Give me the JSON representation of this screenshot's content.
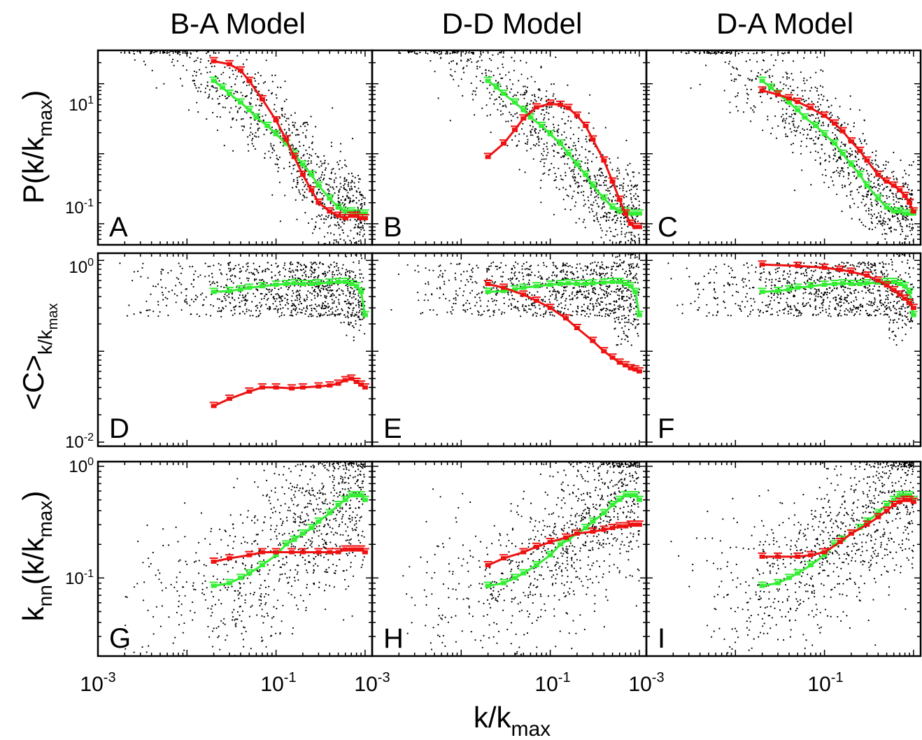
{
  "figure": {
    "column_titles": [
      "B-A Model",
      "D-D Model",
      "D-A Model"
    ],
    "row_labels": {
      "r0": {
        "main": "P(k/k",
        "sub": "max",
        "close": ")"
      },
      "r1": {
        "main": "<C>",
        "sub": "k/k",
        "subsub": "max"
      },
      "r2": {
        "main": "k",
        "sub": "nn",
        "mid": "(k/k",
        "sub2": "max",
        "close": ")"
      }
    },
    "xlabel": {
      "main": "k/k",
      "sub": "max"
    },
    "x_tick_labels": {
      "base": "10",
      "exps": [
        "-3",
        "-1"
      ]
    },
    "y_tick_labels": {
      "r0": [
        {
          "base": "10",
          "exp": "1"
        },
        {
          "base": "10",
          "exp": "-1"
        }
      ],
      "r1": [
        {
          "base": "10",
          "exp": "0"
        },
        {
          "base": "10",
          "exp": "-2"
        }
      ],
      "r2": [
        {
          "base": "10",
          "exp": "0"
        },
        {
          "base": "10",
          "exp": "-1"
        }
      ]
    },
    "colors": {
      "data": "#000000",
      "observed_fit": "#33ee33",
      "model_fit": "#ee1111"
    }
  },
  "chart_data": [
    {
      "panel": "A",
      "type": "scatter",
      "row": 0,
      "col": 0,
      "xlim": [
        0.001,
        1.2
      ],
      "ylim": [
        0.05,
        30
      ],
      "xscale": "log",
      "yscale": "log",
      "series": [
        {
          "color": "green",
          "x": [
            0.02,
            0.025,
            0.03,
            0.04,
            0.05,
            0.06,
            0.08,
            0.1,
            0.13,
            0.16,
            0.2,
            0.25,
            0.3,
            0.4,
            0.5,
            0.6,
            0.7,
            0.8,
            0.9,
            1.0
          ],
          "y": [
            11,
            8.8,
            7.2,
            5.4,
            4.2,
            3.3,
            2.5,
            1.9,
            1.4,
            1.0,
            0.7,
            0.5,
            0.35,
            0.23,
            0.17,
            0.15,
            0.15,
            0.14,
            0.14,
            0.14
          ]
        },
        {
          "color": "red",
          "x": [
            0.02,
            0.03,
            0.04,
            0.05,
            0.07,
            0.1,
            0.13,
            0.16,
            0.2,
            0.25,
            0.3,
            0.4,
            0.5,
            0.6,
            0.7,
            0.8,
            0.9,
            1.0
          ],
          "y": [
            21,
            19,
            15.5,
            11,
            6,
            3,
            1.6,
            0.9,
            0.5,
            0.3,
            0.2,
            0.15,
            0.13,
            0.12,
            0.13,
            0.13,
            0.12,
            0.12
          ]
        }
      ]
    },
    {
      "panel": "B",
      "type": "scatter",
      "row": 0,
      "col": 1,
      "xlim": [
        0.001,
        1.2
      ],
      "ylim": [
        0.05,
        30
      ],
      "xscale": "log",
      "yscale": "log",
      "series": [
        {
          "color": "green",
          "x": [
            0.02,
            0.025,
            0.03,
            0.04,
            0.05,
            0.06,
            0.08,
            0.1,
            0.13,
            0.16,
            0.2,
            0.25,
            0.3,
            0.4,
            0.5,
            0.6,
            0.7,
            0.8,
            0.9,
            1.0
          ],
          "y": [
            11,
            8.8,
            7.2,
            5.4,
            4.2,
            3.3,
            2.5,
            1.9,
            1.4,
            1.0,
            0.7,
            0.5,
            0.35,
            0.23,
            0.17,
            0.15,
            0.15,
            0.14,
            0.14,
            0.14
          ]
        },
        {
          "color": "red",
          "x": [
            0.02,
            0.03,
            0.04,
            0.05,
            0.07,
            0.1,
            0.13,
            0.16,
            0.2,
            0.25,
            0.3,
            0.4,
            0.5,
            0.6,
            0.7,
            0.8,
            0.9,
            1.0
          ],
          "y": [
            0.9,
            1.4,
            2.2,
            3.2,
            4.6,
            5.2,
            5.0,
            4.5,
            3.5,
            2.5,
            1.6,
            0.8,
            0.4,
            0.22,
            0.14,
            0.1,
            0.09,
            0.09
          ]
        }
      ]
    },
    {
      "panel": "C",
      "type": "scatter",
      "row": 0,
      "col": 2,
      "xlim": [
        0.001,
        1.2
      ],
      "ylim": [
        0.05,
        30
      ],
      "xscale": "log",
      "yscale": "log",
      "series": [
        {
          "color": "green",
          "x": [
            0.02,
            0.025,
            0.03,
            0.04,
            0.05,
            0.06,
            0.08,
            0.1,
            0.13,
            0.16,
            0.2,
            0.25,
            0.3,
            0.4,
            0.5,
            0.6,
            0.7,
            0.8,
            0.9,
            1.0
          ],
          "y": [
            11,
            8.8,
            7.2,
            5.4,
            4.2,
            3.3,
            2.5,
            1.9,
            1.4,
            1.0,
            0.7,
            0.5,
            0.35,
            0.23,
            0.17,
            0.15,
            0.15,
            0.14,
            0.14,
            0.14
          ]
        },
        {
          "color": "red",
          "x": [
            0.02,
            0.03,
            0.04,
            0.05,
            0.07,
            0.1,
            0.13,
            0.16,
            0.2,
            0.25,
            0.3,
            0.4,
            0.5,
            0.6,
            0.7,
            0.8,
            0.9,
            1.0
          ],
          "y": [
            8,
            7,
            6.2,
            5.5,
            4.5,
            3.5,
            2.7,
            2.1,
            1.5,
            1.1,
            0.8,
            0.5,
            0.4,
            0.35,
            0.3,
            0.25,
            0.2,
            0.15
          ]
        }
      ]
    },
    {
      "panel": "D",
      "type": "scatter",
      "row": 1,
      "col": 0,
      "xlim": [
        0.001,
        1.2
      ],
      "ylim": [
        0.009,
        1.2
      ],
      "xscale": "log",
      "yscale": "log",
      "series": [
        {
          "color": "green",
          "x": [
            0.02,
            0.03,
            0.04,
            0.05,
            0.07,
            0.1,
            0.13,
            0.16,
            0.2,
            0.25,
            0.3,
            0.4,
            0.5,
            0.6,
            0.7,
            0.8,
            0.9,
            1.0
          ],
          "y": [
            0.45,
            0.46,
            0.48,
            0.5,
            0.52,
            0.54,
            0.55,
            0.56,
            0.55,
            0.55,
            0.56,
            0.57,
            0.58,
            0.58,
            0.55,
            0.52,
            0.45,
            0.25
          ]
        },
        {
          "color": "red",
          "x": [
            0.02,
            0.03,
            0.05,
            0.07,
            0.1,
            0.15,
            0.2,
            0.3,
            0.4,
            0.5,
            0.6,
            0.7,
            0.8,
            0.9,
            1.0
          ],
          "y": [
            0.025,
            0.03,
            0.036,
            0.04,
            0.04,
            0.039,
            0.04,
            0.041,
            0.042,
            0.044,
            0.048,
            0.05,
            0.046,
            0.043,
            0.04
          ]
        }
      ]
    },
    {
      "panel": "E",
      "type": "scatter",
      "row": 1,
      "col": 1,
      "xlim": [
        0.001,
        1.2
      ],
      "ylim": [
        0.009,
        1.2
      ],
      "xscale": "log",
      "yscale": "log",
      "series": [
        {
          "color": "green",
          "x": [
            0.02,
            0.03,
            0.04,
            0.05,
            0.07,
            0.1,
            0.13,
            0.16,
            0.2,
            0.25,
            0.3,
            0.4,
            0.5,
            0.6,
            0.7,
            0.8,
            0.9,
            1.0
          ],
          "y": [
            0.45,
            0.46,
            0.48,
            0.5,
            0.52,
            0.54,
            0.55,
            0.56,
            0.55,
            0.55,
            0.56,
            0.57,
            0.58,
            0.58,
            0.55,
            0.52,
            0.45,
            0.25
          ]
        },
        {
          "color": "red",
          "x": [
            0.02,
            0.03,
            0.05,
            0.07,
            0.1,
            0.15,
            0.2,
            0.3,
            0.4,
            0.5,
            0.6,
            0.7,
            0.8,
            0.9,
            1.0
          ],
          "y": [
            0.55,
            0.5,
            0.42,
            0.36,
            0.3,
            0.23,
            0.18,
            0.13,
            0.1,
            0.085,
            0.075,
            0.07,
            0.065,
            0.063,
            0.06
          ]
        }
      ]
    },
    {
      "panel": "F",
      "type": "scatter",
      "row": 1,
      "col": 2,
      "xlim": [
        0.001,
        1.2
      ],
      "ylim": [
        0.009,
        1.2
      ],
      "xscale": "log",
      "yscale": "log",
      "series": [
        {
          "color": "green",
          "x": [
            0.02,
            0.03,
            0.04,
            0.05,
            0.07,
            0.1,
            0.13,
            0.16,
            0.2,
            0.25,
            0.3,
            0.4,
            0.5,
            0.6,
            0.7,
            0.8,
            0.9,
            1.0
          ],
          "y": [
            0.45,
            0.46,
            0.48,
            0.5,
            0.52,
            0.54,
            0.55,
            0.56,
            0.55,
            0.55,
            0.56,
            0.57,
            0.58,
            0.58,
            0.55,
            0.52,
            0.45,
            0.25
          ]
        },
        {
          "color": "red",
          "x": [
            0.02,
            0.05,
            0.1,
            0.15,
            0.2,
            0.3,
            0.4,
            0.5,
            0.6,
            0.7,
            0.8,
            0.9,
            1.0
          ],
          "y": [
            0.9,
            0.87,
            0.83,
            0.79,
            0.75,
            0.68,
            0.6,
            0.53,
            0.47,
            0.42,
            0.38,
            0.34,
            0.3
          ]
        }
      ]
    },
    {
      "panel": "G",
      "type": "scatter",
      "row": 2,
      "col": 0,
      "xlim": [
        0.001,
        1.2
      ],
      "ylim": [
        0.02,
        1.1
      ],
      "xscale": "log",
      "yscale": "log",
      "series": [
        {
          "color": "green",
          "x": [
            0.02,
            0.03,
            0.04,
            0.05,
            0.07,
            0.1,
            0.13,
            0.16,
            0.2,
            0.25,
            0.3,
            0.4,
            0.5,
            0.6,
            0.7,
            0.8,
            0.9,
            1.0
          ],
          "y": [
            0.085,
            0.09,
            0.1,
            0.11,
            0.13,
            0.16,
            0.2,
            0.22,
            0.25,
            0.28,
            0.32,
            0.38,
            0.45,
            0.5,
            0.55,
            0.55,
            0.55,
            0.5
          ]
        },
        {
          "color": "red",
          "x": [
            0.02,
            0.03,
            0.05,
            0.07,
            0.1,
            0.15,
            0.2,
            0.3,
            0.4,
            0.5,
            0.6,
            0.7,
            0.8,
            0.9,
            1.0
          ],
          "y": [
            0.14,
            0.15,
            0.16,
            0.17,
            0.17,
            0.17,
            0.17,
            0.17,
            0.17,
            0.17,
            0.18,
            0.18,
            0.18,
            0.18,
            0.17
          ]
        }
      ]
    },
    {
      "panel": "H",
      "type": "scatter",
      "row": 2,
      "col": 1,
      "xlim": [
        0.001,
        1.2
      ],
      "ylim": [
        0.02,
        1.1
      ],
      "xscale": "log",
      "yscale": "log",
      "series": [
        {
          "color": "green",
          "x": [
            0.02,
            0.03,
            0.04,
            0.05,
            0.07,
            0.1,
            0.13,
            0.16,
            0.2,
            0.25,
            0.3,
            0.4,
            0.5,
            0.6,
            0.7,
            0.8,
            0.9,
            1.0
          ],
          "y": [
            0.085,
            0.09,
            0.1,
            0.11,
            0.13,
            0.16,
            0.2,
            0.22,
            0.25,
            0.28,
            0.32,
            0.38,
            0.45,
            0.5,
            0.55,
            0.55,
            0.55,
            0.5
          ]
        },
        {
          "color": "red",
          "x": [
            0.02,
            0.03,
            0.05,
            0.07,
            0.1,
            0.15,
            0.2,
            0.3,
            0.4,
            0.5,
            0.6,
            0.7,
            0.8,
            0.9,
            1.0
          ],
          "y": [
            0.13,
            0.15,
            0.17,
            0.19,
            0.21,
            0.23,
            0.25,
            0.26,
            0.27,
            0.28,
            0.29,
            0.29,
            0.3,
            0.3,
            0.3
          ]
        }
      ]
    },
    {
      "panel": "I",
      "type": "scatter",
      "row": 2,
      "col": 2,
      "xlim": [
        0.001,
        1.2
      ],
      "ylim": [
        0.02,
        1.1
      ],
      "xscale": "log",
      "yscale": "log",
      "series": [
        {
          "color": "green",
          "x": [
            0.02,
            0.03,
            0.04,
            0.05,
            0.07,
            0.1,
            0.13,
            0.16,
            0.2,
            0.25,
            0.3,
            0.4,
            0.5,
            0.6,
            0.7,
            0.8,
            0.9,
            1.0
          ],
          "y": [
            0.085,
            0.09,
            0.1,
            0.11,
            0.13,
            0.16,
            0.2,
            0.22,
            0.25,
            0.28,
            0.32,
            0.38,
            0.45,
            0.5,
            0.55,
            0.55,
            0.55,
            0.5
          ]
        },
        {
          "color": "red",
          "x": [
            0.02,
            0.03,
            0.05,
            0.07,
            0.1,
            0.15,
            0.2,
            0.3,
            0.4,
            0.5,
            0.6,
            0.7,
            0.8,
            0.9,
            1.0
          ],
          "y": [
            0.155,
            0.155,
            0.155,
            0.16,
            0.17,
            0.21,
            0.25,
            0.3,
            0.35,
            0.4,
            0.45,
            0.48,
            0.5,
            0.5,
            0.48
          ]
        }
      ]
    }
  ]
}
